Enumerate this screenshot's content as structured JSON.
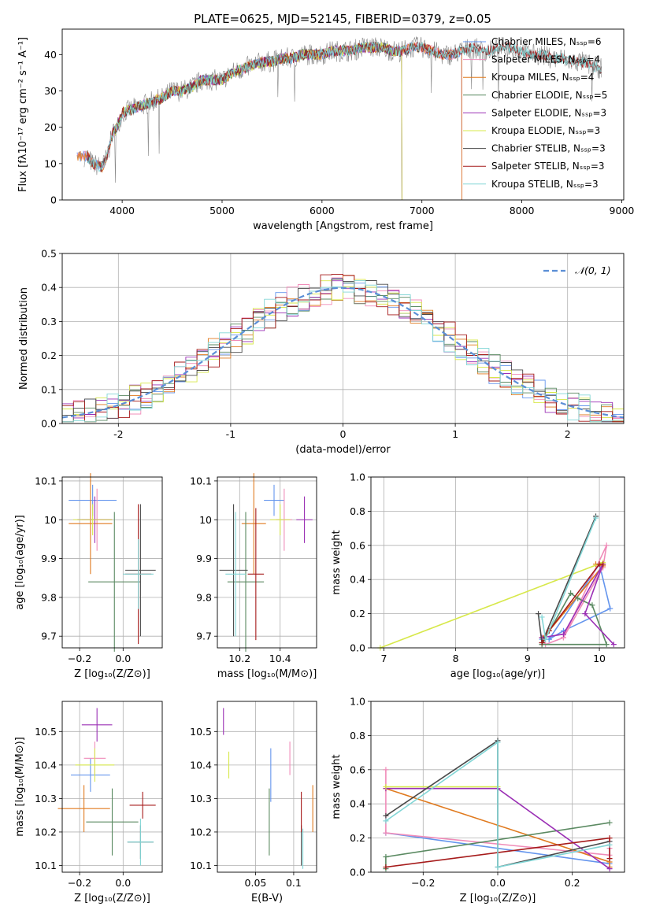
{
  "figure": {
    "title": "PLATE=0625, MJD=52145, FIBERID=0379, z=0.05"
  },
  "chart_data": [
    {
      "id": "spectrum",
      "type": "line",
      "xlabel": "wavelength [Angstrom, rest frame]",
      "ylabel": "Flux [fλ10⁻¹⁷ erg cm⁻² s⁻¹ A⁻¹]",
      "xlim": [
        3400,
        9020
      ],
      "ylim": [
        0,
        47
      ],
      "xticks": [
        4000,
        5000,
        6000,
        7000,
        8000,
        9000
      ],
      "yticks": [
        0,
        10,
        20,
        30,
        40
      ],
      "grid": false,
      "legend_position": "right",
      "data_trace": {
        "x": [
          3650,
          3700,
          3800,
          3850,
          3900,
          3950,
          4000,
          4100,
          4200,
          4300,
          4400,
          4500,
          4600,
          4700,
          4800,
          4900,
          5000,
          5100,
          5200,
          5300,
          5400,
          5500,
          5600,
          5700,
          5800,
          5900,
          6000,
          6100,
          6200,
          6300,
          6400,
          6500,
          6600,
          6700,
          6800,
          6900,
          7000,
          7100,
          7200,
          7300,
          7400,
          7500,
          7600,
          7700,
          7800,
          7900,
          8000,
          8100,
          8200,
          8300,
          8400,
          8500,
          8600,
          8700,
          8800
        ],
        "y": [
          12,
          10,
          9,
          12,
          18,
          20,
          24,
          25,
          26,
          27,
          28,
          30,
          30,
          31,
          33,
          33,
          33,
          35,
          36,
          37,
          38,
          38,
          39,
          39,
          40,
          40,
          40,
          41,
          41,
          41,
          42,
          42,
          42,
          41,
          41,
          42,
          42,
          41,
          40,
          40,
          41,
          42,
          41,
          41,
          42,
          42,
          41,
          40,
          40,
          39,
          39,
          38,
          38,
          37,
          36
        ]
      },
      "model_ranges": [
        {
          "name": "Chabrier MILES, N_SSP=6",
          "x": [
            3550,
            7400
          ]
        },
        {
          "name": "Salpeter MILES, N_SSP=4",
          "x": [
            3550,
            7400
          ]
        },
        {
          "name": "Kroupa MILES, N_SSP=4",
          "x": [
            3550,
            7400
          ]
        },
        {
          "name": "Chabrier ELODIE, N_SSP=5",
          "x": [
            3900,
            6800
          ]
        },
        {
          "name": "Salpeter ELODIE, N_SSP=3",
          "x": [
            3900,
            6800
          ]
        },
        {
          "name": "Kroupa ELODIE, N_SSP=3",
          "x": [
            3900,
            6800
          ]
        },
        {
          "name": "Chabrier STELIB, N_SSP=3",
          "x": [
            3650,
            8800
          ]
        },
        {
          "name": "Salpeter STELIB, N_SSP=3",
          "x": [
            3650,
            8800
          ]
        },
        {
          "name": "Kroupa STELIB, N_SSP=3",
          "x": [
            3650,
            8800
          ]
        }
      ]
    },
    {
      "id": "residuals",
      "type": "area",
      "xlabel": "(data-model)/error",
      "ylabel": "Normed distribution",
      "xlim": [
        -2.5,
        2.5
      ],
      "ylim": [
        0,
        0.5
      ],
      "xticks": [
        -2,
        -1,
        0,
        1,
        2
      ],
      "yticks": [
        0.0,
        0.1,
        0.2,
        0.3,
        0.4,
        0.5
      ],
      "grid": true,
      "legend": [
        {
          "name": "𝒩(0, 1)"
        }
      ],
      "legend_position": "top-right",
      "bin_width": 0.1,
      "normal_curve": {
        "mean": 0,
        "sigma": 1
      }
    },
    {
      "id": "age-vs-Z",
      "type": "scatter",
      "xlabel": "Z [log₁₀(Z/Z⊙)]",
      "ylabel": "age  [log₁₀(age/yr)]",
      "xlim": [
        -0.28,
        0.18
      ],
      "ylim": [
        9.67,
        10.11
      ],
      "xticks": [
        -0.2,
        0.0
      ],
      "xticklabels": [
        "−0.2",
        "0.0"
      ],
      "yticks": [
        9.7,
        9.8,
        9.9,
        10.0,
        10.1
      ],
      "grid": true,
      "points": [
        {
          "x": -0.14,
          "xerr": 0.11,
          "y": 10.05,
          "yerr": 0.04
        },
        {
          "x": -0.12,
          "xerr": 0.07,
          "y": 10.0,
          "yerr": 0.08
        },
        {
          "x": -0.15,
          "xerr": 0.1,
          "y": 9.99,
          "yerr": 0.13
        },
        {
          "x": -0.04,
          "xerr": 0.12,
          "y": 9.84,
          "yerr": 0.18
        },
        {
          "x": -0.13,
          "xerr": 0.08,
          "y": 10.0,
          "yerr": 0.06
        },
        {
          "x": -0.14,
          "xerr": 0.09,
          "y": 10.0,
          "yerr": 0.04
        },
        {
          "x": 0.08,
          "xerr": 0.07,
          "y": 9.87,
          "yerr": 0.17
        },
        {
          "x": 0.07,
          "xerr": 0.06,
          "y": 9.86,
          "yerr": 0.18
        },
        {
          "x": 0.07,
          "xerr": 0.07,
          "y": 9.86,
          "yerr": 0.09
        }
      ]
    },
    {
      "id": "age-vs-mass",
      "type": "scatter",
      "xlabel": "mass [log₁₀(M/M⊙)]",
      "ylabel": "",
      "xlim": [
        10.09,
        10.58
      ],
      "ylim": [
        9.67,
        10.11
      ],
      "xticks": [
        10.2,
        10.4
      ],
      "yticks": [
        9.7,
        9.8,
        9.9,
        10.0,
        10.1
      ],
      "grid": true,
      "points": [
        {
          "x": 10.37,
          "xerr": 0.05,
          "y": 10.05,
          "yerr": 0.04
        },
        {
          "x": 10.42,
          "xerr": 0.04,
          "y": 10.0,
          "yerr": 0.08
        },
        {
          "x": 10.27,
          "xerr": 0.06,
          "y": 9.99,
          "yerr": 0.13
        },
        {
          "x": 10.23,
          "xerr": 0.09,
          "y": 9.84,
          "yerr": 0.18
        },
        {
          "x": 10.52,
          "xerr": 0.04,
          "y": 10.0,
          "yerr": 0.06
        },
        {
          "x": 10.4,
          "xerr": 0.05,
          "y": 10.0,
          "yerr": 0.04
        },
        {
          "x": 10.17,
          "xerr": 0.07,
          "y": 9.87,
          "yerr": 0.17
        },
        {
          "x": 10.28,
          "xerr": 0.04,
          "y": 9.86,
          "yerr": 0.17
        },
        {
          "x": 10.18,
          "xerr": 0.05,
          "y": 9.86,
          "yerr": 0.16
        }
      ]
    },
    {
      "id": "weight-vs-age",
      "type": "line",
      "xlabel": "age  [log₁₀(age/yr)]",
      "ylabel": "mass weight",
      "xlim": [
        6.82,
        10.35
      ],
      "ylim": [
        0,
        1.0
      ],
      "xticks": [
        7,
        8,
        9,
        10
      ],
      "yticks": [
        0.0,
        0.2,
        0.4,
        0.6,
        0.8,
        1.0
      ],
      "grid": true,
      "series": [
        {
          "x": [
            9.2,
            9.3,
            9.5,
            10.15,
            10.0,
            9.3
          ],
          "y": [
            0.05,
            0.05,
            0.1,
            0.23,
            0.49,
            0.05
          ]
        },
        {
          "x": [
            9.2,
            9.25,
            9.5,
            10.1,
            10.05,
            9.5
          ],
          "y": [
            0.06,
            0.02,
            0.06,
            0.6,
            0.47,
            0.06
          ]
        },
        {
          "x": [
            9.2,
            9.3,
            10.05,
            9.95
          ],
          "y": [
            0.06,
            0.1,
            0.48,
            0.49
          ]
        },
        {
          "x": [
            9.2,
            9.6,
            9.7,
            9.9,
            10.1,
            9.2
          ],
          "y": [
            0.02,
            0.32,
            0.29,
            0.25,
            0.02,
            0.02
          ]
        },
        {
          "x": [
            9.2,
            9.5,
            10.05,
            9.8,
            10.2
          ],
          "y": [
            0.06,
            0.08,
            0.49,
            0.2,
            0.02
          ]
        },
        {
          "x": [
            6.95,
            10.05
          ],
          "y": [
            0.0,
            0.5
          ]
        },
        {
          "x": [
            9.15,
            9.2,
            9.95
          ],
          "y": [
            0.2,
            0.03,
            0.77
          ]
        },
        {
          "x": [
            9.2,
            9.3,
            10.0,
            10.05
          ],
          "y": [
            0.03,
            0.1,
            0.49,
            0.49
          ]
        },
        {
          "x": [
            9.2,
            9.25,
            9.95
          ],
          "y": [
            0.18,
            0.05,
            0.76
          ]
        }
      ]
    },
    {
      "id": "mass-vs-Z",
      "type": "scatter",
      "xlabel": "Z [log₁₀(Z/Z⊙)]",
      "ylabel": "mass [log₁₀(M/M⊙)]",
      "xlim": [
        -0.28,
        0.18
      ],
      "ylim": [
        10.08,
        10.59
      ],
      "xticks": [
        -0.2,
        0.0
      ],
      "xticklabels": [
        "−0.2",
        "0.0"
      ],
      "yticks": [
        10.1,
        10.2,
        10.3,
        10.4,
        10.5
      ],
      "grid": true,
      "points": [
        {
          "x": -0.15,
          "xerr": 0.09,
          "y": 10.37,
          "yerr": 0.05
        },
        {
          "x": -0.13,
          "xerr": 0.05,
          "y": 10.42,
          "yerr": 0.05
        },
        {
          "x": -0.18,
          "xerr": 0.12,
          "y": 10.27,
          "yerr": 0.07
        },
        {
          "x": -0.05,
          "xerr": 0.12,
          "y": 10.23,
          "yerr": 0.1
        },
        {
          "x": -0.12,
          "xerr": 0.07,
          "y": 10.52,
          "yerr": 0.05
        },
        {
          "x": -0.13,
          "xerr": 0.09,
          "y": 10.4,
          "yerr": 0.05
        },
        {
          "x": 0.08,
          "xerr": 0.06,
          "y": 10.17,
          "yerr": 0.05
        },
        {
          "x": 0.09,
          "xerr": 0.06,
          "y": 10.28,
          "yerr": 0.04
        },
        {
          "x": 0.08,
          "xerr": 0.06,
          "y": 10.17,
          "yerr": 0.07
        }
      ]
    },
    {
      "id": "mass-vs-ebv",
      "type": "scatter",
      "xlabel": "E(B-V)",
      "ylabel": "",
      "xlim": [
        0.0,
        0.13
      ],
      "ylim": [
        10.08,
        10.59
      ],
      "xticks": [
        0.05,
        0.1
      ],
      "yticks": [
        10.1,
        10.2,
        10.3,
        10.4,
        10.5
      ],
      "grid": true,
      "points": [
        {
          "x": 0.07,
          "y": 10.37,
          "yerr": 0.08
        },
        {
          "x": 0.095,
          "y": 10.42,
          "yerr": 0.05
        },
        {
          "x": 0.125,
          "y": 10.27,
          "yerr": 0.07
        },
        {
          "x": 0.068,
          "y": 10.23,
          "yerr": 0.1
        },
        {
          "x": 0.008,
          "y": 10.53,
          "yerr": 0.04
        },
        {
          "x": 0.015,
          "y": 10.4,
          "yerr": 0.04
        },
        {
          "x": 0.11,
          "y": 10.16,
          "yerr": 0.06
        },
        {
          "x": 0.11,
          "y": 10.26,
          "yerr": 0.06
        },
        {
          "x": 0.112,
          "y": 10.15,
          "yerr": 0.06
        }
      ]
    },
    {
      "id": "weight-vs-Z",
      "type": "line",
      "xlabel": "Z [log₁₀(Z/Z⊙)]",
      "ylabel": "mass weight",
      "xlim": [
        -0.34,
        0.34
      ],
      "ylim": [
        0,
        1.0
      ],
      "xticks": [
        -0.2,
        0.0,
        0.2
      ],
      "xticklabels": [
        "−0.2",
        "0.0",
        "0.2"
      ],
      "yticks": [
        0.0,
        0.2,
        0.4,
        0.6,
        0.8,
        1.0
      ],
      "grid": true,
      "series": [
        {
          "x": [
            -0.3,
            -0.3,
            0.3,
            0.3
          ],
          "y": [
            0.23,
            0.23,
            0.05,
            0.18
          ]
        },
        {
          "x": [
            -0.3,
            -0.3,
            0.3,
            0.3
          ],
          "y": [
            0.6,
            0.23,
            0.1,
            0.14
          ]
        },
        {
          "x": [
            -0.3,
            0.3,
            0.3
          ],
          "y": [
            0.49,
            0.06,
            0.03
          ]
        },
        {
          "x": [
            -0.3,
            -0.3,
            0.3
          ],
          "y": [
            0.02,
            0.09,
            0.29
          ]
        },
        {
          "x": [
            -0.3,
            0.0,
            0.3
          ],
          "y": [
            0.49,
            0.49,
            0.02
          ]
        },
        {
          "x": [
            -0.3,
            0.0
          ],
          "y": [
            0.5,
            0.5
          ]
        },
        {
          "x": [
            -0.3,
            0.0,
            0.0,
            0.3
          ],
          "y": [
            0.33,
            0.77,
            0.03,
            0.18
          ]
        },
        {
          "x": [
            -0.3,
            0.3,
            0.3
          ],
          "y": [
            0.03,
            0.2,
            0.08
          ]
        },
        {
          "x": [
            -0.3,
            0.0,
            0.0,
            0.3
          ],
          "y": [
            0.3,
            0.76,
            0.03,
            0.16
          ]
        }
      ]
    }
  ],
  "series_colors": [
    "#6495ED",
    "#F08CB9",
    "#E07A1F",
    "#5B8A62",
    "#9B30B5",
    "#D7E84A",
    "#4A4A4A",
    "#A61B1B",
    "#82D6D6"
  ],
  "data_color": "#888888"
}
